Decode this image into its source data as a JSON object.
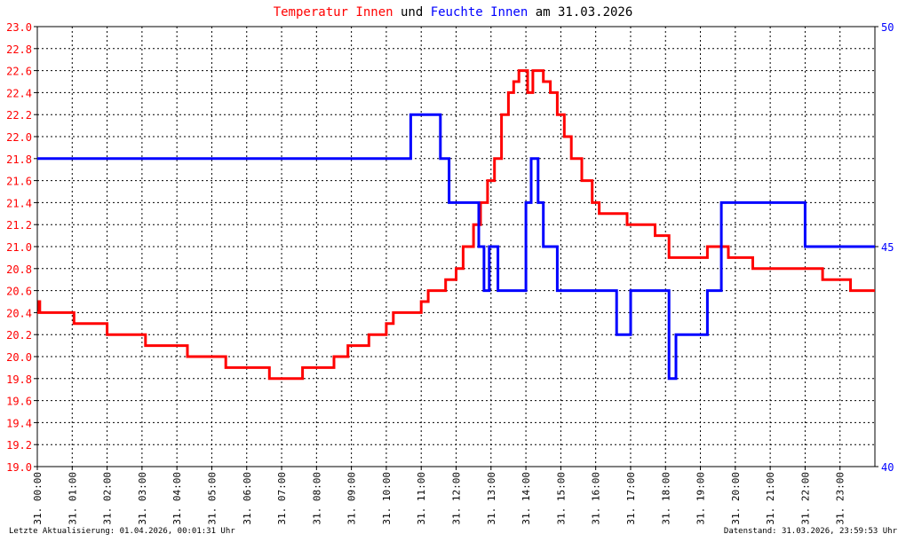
{
  "chart_data": {
    "type": "line",
    "title": {
      "parts": [
        {
          "text": "Temperatur Innen",
          "color": "#ff0000"
        },
        {
          "text": " und ",
          "color": "#000000"
        },
        {
          "text": "Feuchte Innen",
          "color": "#0000ff"
        },
        {
          "text": " am 31.03.2026",
          "color": "#000000"
        }
      ]
    },
    "x_axis": {
      "tick_labels": [
        "31. 00:00",
        "31. 01:00",
        "31. 02:00",
        "31. 03:00",
        "31. 04:00",
        "31. 05:00",
        "31. 06:00",
        "31. 07:00",
        "31. 08:00",
        "31. 09:00",
        "31. 10:00",
        "31. 11:00",
        "31. 12:00",
        "31. 13:00",
        "31. 14:00",
        "31. 15:00",
        "31. 16:00",
        "31. 17:00",
        "31. 18:00",
        "31. 19:00",
        "31. 20:00",
        "31. 21:00",
        "31. 22:00",
        "31. 23:00"
      ],
      "range_hours": [
        0,
        24
      ]
    },
    "y_left": {
      "range": [
        19.0,
        23.0
      ],
      "tick_labels": [
        "23.0",
        "22.8",
        "22.6",
        "22.4",
        "22.2",
        "22.0",
        "21.8",
        "21.6",
        "21.4",
        "21.2",
        "21.0",
        "20.8",
        "20.6",
        "20.4",
        "20.2",
        "20.0",
        "19.8",
        "19.6",
        "19.4",
        "19.2",
        "19.0"
      ],
      "color": "#ff0000"
    },
    "y_right": {
      "range": [
        40,
        50
      ],
      "tick_labels": [
        "50",
        "45",
        "40"
      ],
      "color": "#0000ff"
    },
    "grid": true,
    "series": [
      {
        "name": "Temperatur Innen",
        "axis": "left",
        "color": "#ff0000",
        "x_hours": [
          0,
          0.05,
          0.07,
          0.75,
          1.05,
          1.9,
          2.0,
          2.9,
          3.1,
          4.1,
          4.3,
          5.35,
          5.4,
          6.6,
          6.65,
          7.6,
          7.9,
          8.5,
          8.9,
          9.5,
          10.0,
          10.2,
          10.6,
          11.0,
          11.2,
          11.7,
          12.0,
          12.2,
          12.5,
          12.7,
          12.9,
          13.1,
          13.3,
          13.5,
          13.65,
          13.8,
          13.9,
          14.05,
          14.2,
          14.5,
          14.7,
          14.9,
          15.1,
          15.3,
          15.6,
          15.9,
          16.1,
          16.3,
          16.6,
          16.9,
          17.3,
          17.7,
          18.1,
          18.2,
          18.6,
          18.9,
          19.2,
          19.6,
          19.8,
          20.0,
          20.5,
          21.0,
          21.5,
          22.0,
          22.5,
          23.0,
          23.3,
          23.6,
          24.0
        ],
        "y": [
          20.4,
          20.5,
          20.4,
          20.4,
          20.3,
          20.3,
          20.2,
          20.2,
          20.1,
          20.1,
          20.0,
          20.0,
          19.9,
          19.9,
          19.8,
          19.9,
          19.9,
          20.0,
          20.1,
          20.2,
          20.3,
          20.4,
          20.4,
          20.5,
          20.6,
          20.7,
          20.8,
          21.0,
          21.2,
          21.4,
          21.6,
          21.8,
          22.2,
          22.4,
          22.5,
          22.6,
          22.6,
          22.4,
          22.6,
          22.5,
          22.4,
          22.2,
          22.0,
          21.8,
          21.6,
          21.4,
          21.3,
          21.3,
          21.3,
          21.2,
          21.2,
          21.1,
          20.9,
          20.9,
          20.9,
          20.9,
          21.0,
          21.0,
          20.9,
          20.9,
          20.8,
          20.8,
          20.8,
          20.8,
          20.7,
          20.7,
          20.6,
          20.6,
          20.6
        ]
      },
      {
        "name": "Feuchte Innen",
        "axis": "right",
        "color": "#0000ff",
        "x_hours": [
          0,
          10.65,
          10.7,
          11.45,
          11.55,
          11.8,
          12.5,
          12.65,
          12.8,
          12.95,
          13.2,
          13.35,
          14.0,
          14.15,
          14.35,
          14.5,
          14.65,
          14.9,
          15.3,
          16.0,
          16.3,
          16.6,
          17.0,
          17.3,
          17.6,
          18.1,
          18.3,
          18.4,
          18.8,
          19.2,
          19.6,
          20.0,
          20.3,
          20.6,
          21.0,
          21.6,
          22.0,
          22.3,
          23.0,
          23.6,
          24.0
        ],
        "y": [
          47,
          47,
          48,
          48,
          47,
          46,
          46,
          45,
          44,
          45,
          44,
          44,
          46,
          47,
          46,
          45,
          45,
          44,
          44,
          44,
          44,
          43,
          44,
          44,
          44,
          42,
          43,
          43,
          43,
          44,
          46,
          46,
          46,
          46,
          46,
          46,
          45,
          45,
          45,
          45,
          45
        ]
      }
    ],
    "footer_left": "Letzte Aktualisierung: 01.04.2026, 00:01:31 Uhr",
    "footer_right": "Datenstand: 31.03.2026, 23:59:53 Uhr"
  }
}
